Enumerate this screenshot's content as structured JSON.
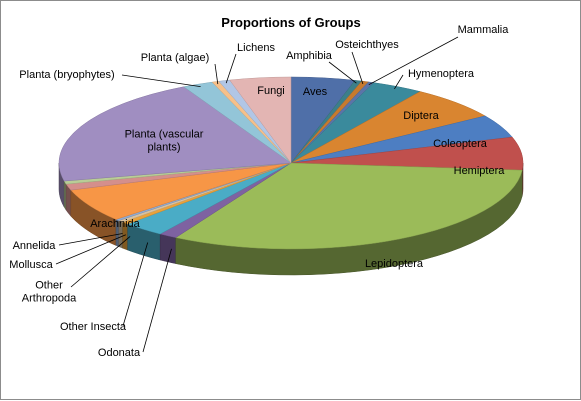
{
  "chart_data": {
    "type": "pie",
    "three_d": true,
    "title": "Proportions of Groups",
    "slices": [
      {
        "label": "Aves",
        "value": 4.6,
        "color": "#4f6fa8"
      },
      {
        "label": "Amphibia",
        "value": 0.5,
        "color": "#3c7f8a"
      },
      {
        "label": "Osteichthyes",
        "value": 0.5,
        "color": "#c77a2e"
      },
      {
        "label": "Mammalia",
        "value": 0.4,
        "color": "#5b74a8"
      },
      {
        "label": "Hymenoptera",
        "value": 3.7,
        "color": "#3a8a9c"
      },
      {
        "label": "Diptera",
        "value": 6.6,
        "color": "#d98530"
      },
      {
        "label": "Coleoptera",
        "value": 4.5,
        "color": "#4d7ec2"
      },
      {
        "label": "Hemiptera",
        "value": 6.4,
        "color": "#c0504d"
      },
      {
        "label": "Lepidoptera",
        "value": 33.0,
        "color": "#9bbb59"
      },
      {
        "label": "Odonata",
        "value": 1.3,
        "color": "#7e62a1"
      },
      {
        "label": "Other Insecta",
        "value": 3.0,
        "color": "#4aacc6"
      },
      {
        "label": "Other Arthropoda",
        "value": 0.5,
        "color": "#e9a23b"
      },
      {
        "label": "Mollusca",
        "value": 0.4,
        "color": "#d9c2a0"
      },
      {
        "label": "Annelida",
        "value": 0.3,
        "color": "#8faad3"
      },
      {
        "label": "Arachnida",
        "value": 6.5,
        "color": "#f79646"
      },
      {
        "label": "",
        "value": 1.2,
        "color": "#d48f8c"
      },
      {
        "label": "",
        "value": 0.6,
        "color": "#b9cd96"
      },
      {
        "label": "Planta (vascular plants)",
        "value": 21.4,
        "color": "#a08ec1"
      },
      {
        "label": "Planta (bryophytes)",
        "value": 2.2,
        "color": "#93c5d8"
      },
      {
        "label": "Planta (algae)",
        "value": 0.5,
        "color": "#f6c08a"
      },
      {
        "label": "Lichens",
        "value": 0.8,
        "color": "#b1c6e6"
      },
      {
        "label": "Fungi",
        "value": 4.4,
        "color": "#e3b5b3"
      }
    ]
  }
}
